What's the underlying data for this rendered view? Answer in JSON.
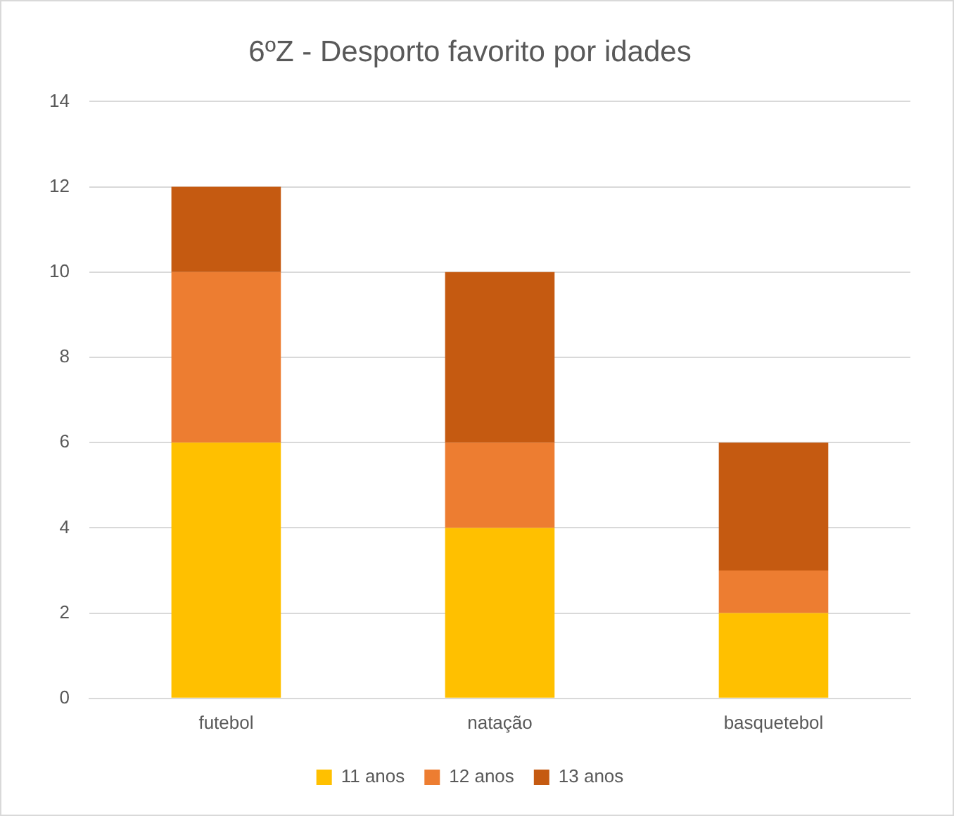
{
  "chart_data": {
    "type": "bar",
    "title": "6ºZ - Desporto favorito por idades",
    "categories": [
      "futebol",
      "natação",
      "basquetebol"
    ],
    "stacked": true,
    "series": [
      {
        "name": "11 anos",
        "color": "#ffc000",
        "values": [
          6,
          4,
          2
        ]
      },
      {
        "name": "12 anos",
        "color": "#ed7d31",
        "values": [
          4,
          2,
          1
        ]
      },
      {
        "name": "13 anos",
        "color": "#c55a11",
        "values": [
          2,
          4,
          3
        ]
      }
    ],
    "ylim": [
      0,
      14
    ],
    "yticks": [
      0,
      2,
      4,
      6,
      8,
      10,
      12,
      14
    ],
    "grid": "y",
    "legend": "bottom"
  }
}
